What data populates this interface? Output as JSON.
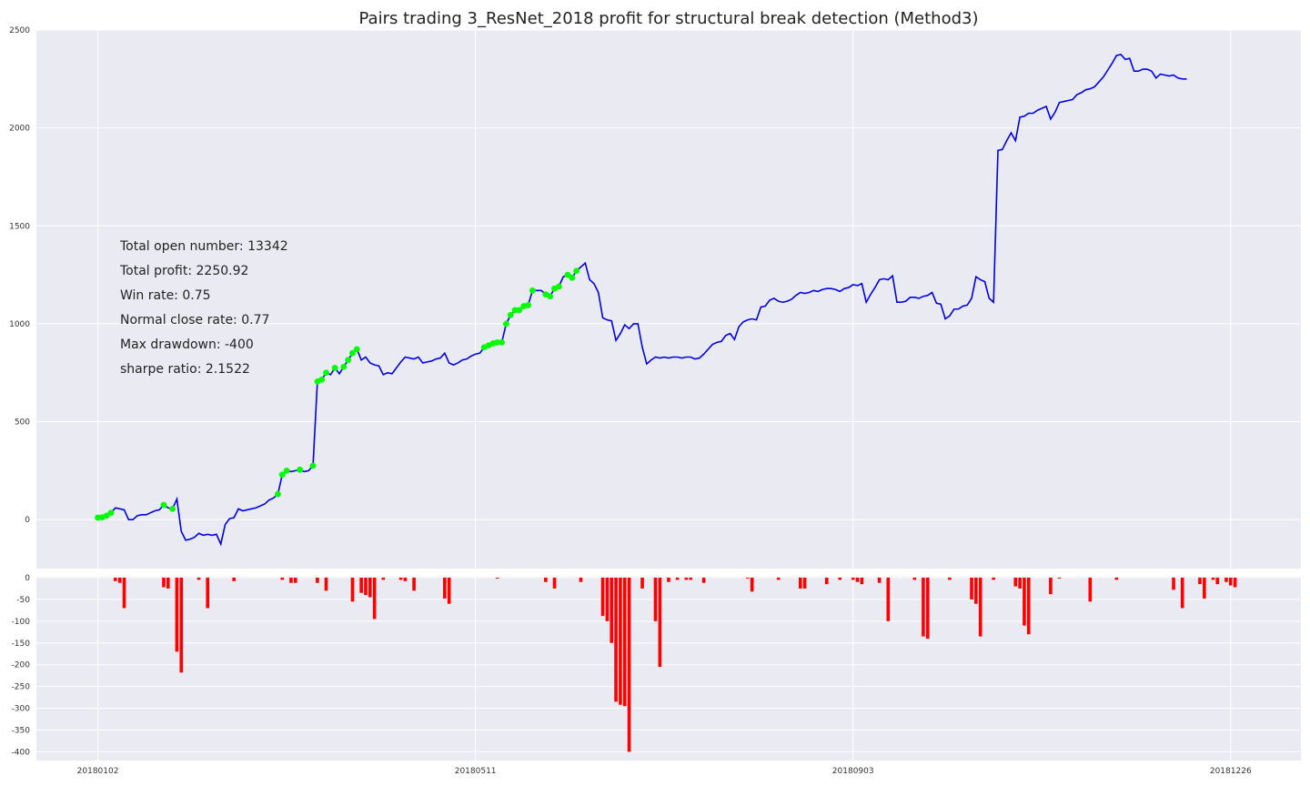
{
  "chart_data": [
    {
      "type": "line",
      "title": "Pairs trading 3_ResNet_2018 profit for structural break detection (Method3)",
      "xlabel": "",
      "ylabel": "",
      "ylim": [
        -250,
        2500
      ],
      "yticks": [
        0,
        500,
        1000,
        1500,
        2000,
        2500
      ],
      "xticks": [
        {
          "index": 0,
          "label": "20180102"
        },
        {
          "index": 86,
          "label": "20180511"
        },
        {
          "index": 172,
          "label": "20180903"
        },
        {
          "index": 258,
          "label": "20181226"
        }
      ],
      "xlim": [
        -14,
        274
      ],
      "grid": true,
      "series": [
        {
          "color": "#0000ee",
          "values": [
            10,
            12,
            20,
            35,
            60,
            55,
            50,
            0,
            0,
            20,
            25,
            25,
            35,
            45,
            50,
            75,
            60,
            55,
            105,
            -60,
            -105,
            -100,
            -90,
            -70,
            -80,
            -75,
            -80,
            -75,
            -125,
            -25,
            5,
            10,
            55,
            45,
            50,
            55,
            60,
            70,
            80,
            100,
            110,
            130,
            230,
            250,
            245,
            250,
            255,
            245,
            250,
            275,
            705,
            715,
            750,
            740,
            775,
            745,
            780,
            815,
            850,
            870,
            815,
            830,
            800,
            790,
            785,
            740,
            750,
            745,
            775,
            805,
            830,
            825,
            820,
            830,
            800,
            805,
            810,
            820,
            825,
            850,
            800,
            790,
            800,
            815,
            820,
            835,
            845,
            850,
            880,
            890,
            900,
            905,
            905,
            1000,
            1045,
            1070,
            1070,
            1090,
            1095,
            1170,
            1170,
            1170,
            1150,
            1140,
            1180,
            1190,
            1240,
            1250,
            1235,
            1270,
            1290,
            1310,
            1225,
            1205,
            1160,
            1030,
            1020,
            1015,
            915,
            950,
            995,
            975,
            1000,
            1000,
            880,
            795,
            815,
            830,
            825,
            830,
            825,
            830,
            830,
            825,
            830,
            830,
            820,
            825,
            845,
            870,
            895,
            905,
            910,
            940,
            950,
            920,
            985,
            1010,
            1020,
            1025,
            1020,
            1085,
            1090,
            1120,
            1130,
            1115,
            1110,
            1115,
            1125,
            1145,
            1160,
            1155,
            1160,
            1170,
            1165,
            1175,
            1180,
            1180,
            1175,
            1165,
            1180,
            1185,
            1200,
            1195,
            1205,
            1110,
            1150,
            1185,
            1225,
            1230,
            1225,
            1245,
            1110,
            1110,
            1115,
            1135,
            1135,
            1130,
            1140,
            1145,
            1160,
            1105,
            1100,
            1025,
            1040,
            1075,
            1075,
            1090,
            1095,
            1130,
            1240,
            1225,
            1215,
            1130,
            1110,
            1885,
            1890,
            1935,
            1975,
            1935,
            2055,
            2060,
            2075,
            2075,
            2090,
            2100,
            2110,
            2045,
            2080,
            2130,
            2135,
            2140,
            2145,
            2170,
            2180,
            2195,
            2200,
            2210,
            2235,
            2260,
            2295,
            2330,
            2370,
            2375,
            2350,
            2355,
            2290,
            2290,
            2300,
            2300,
            2290,
            2255,
            2275,
            2270,
            2265,
            2270,
            2255,
            2250,
            2250
          ]
        }
      ],
      "markers": {
        "color": "#00ff00",
        "indices": [
          0,
          1,
          2,
          3,
          15,
          17,
          41,
          42,
          43,
          46,
          49,
          50,
          51,
          52,
          54,
          56,
          57,
          58,
          59,
          88,
          89,
          90,
          91,
          92,
          93,
          94,
          95,
          96,
          97,
          98,
          99,
          102,
          103,
          104,
          105,
          107,
          108,
          109
        ]
      },
      "annotations": [
        "Total open number: 13342",
        "Total profit: 2250.92",
        "Win rate: 0.75",
        "Normal close rate: 0.77",
        "Max drawdown: -400",
        "sharpe ratio: 2.1522"
      ]
    },
    {
      "type": "bar",
      "ylim": [
        -420,
        2
      ],
      "yticks": [
        0,
        -50,
        -100,
        -150,
        -200,
        -250,
        -300,
        -350,
        -400
      ],
      "color": "#ff0000",
      "bars": [
        {
          "i": 4,
          "v": -8
        },
        {
          "i": 5,
          "v": -12
        },
        {
          "i": 6,
          "v": -70
        },
        {
          "i": 15,
          "v": -22
        },
        {
          "i": 16,
          "v": -25
        },
        {
          "i": 18,
          "v": -170
        },
        {
          "i": 19,
          "v": -218
        },
        {
          "i": 23,
          "v": -5
        },
        {
          "i": 25,
          "v": -70
        },
        {
          "i": 31,
          "v": -8
        },
        {
          "i": 42,
          "v": -5
        },
        {
          "i": 44,
          "v": -12
        },
        {
          "i": 45,
          "v": -12
        },
        {
          "i": 50,
          "v": -12
        },
        {
          "i": 52,
          "v": -30
        },
        {
          "i": 58,
          "v": -55
        },
        {
          "i": 60,
          "v": -35
        },
        {
          "i": 61,
          "v": -40
        },
        {
          "i": 62,
          "v": -45
        },
        {
          "i": 63,
          "v": -95
        },
        {
          "i": 65,
          "v": -5
        },
        {
          "i": 69,
          "v": -5
        },
        {
          "i": 70,
          "v": -8
        },
        {
          "i": 72,
          "v": -30
        },
        {
          "i": 79,
          "v": -48
        },
        {
          "i": 80,
          "v": -60
        },
        {
          "i": 91,
          "v": -2
        },
        {
          "i": 102,
          "v": -10
        },
        {
          "i": 104,
          "v": -25
        },
        {
          "i": 110,
          "v": -10
        },
        {
          "i": 115,
          "v": -88
        },
        {
          "i": 116,
          "v": -100
        },
        {
          "i": 117,
          "v": -150
        },
        {
          "i": 118,
          "v": -285
        },
        {
          "i": 119,
          "v": -292
        },
        {
          "i": 120,
          "v": -295
        },
        {
          "i": 121,
          "v": -400
        },
        {
          "i": 124,
          "v": -25
        },
        {
          "i": 127,
          "v": -100
        },
        {
          "i": 128,
          "v": -205
        },
        {
          "i": 130,
          "v": -10
        },
        {
          "i": 132,
          "v": -5
        },
        {
          "i": 134,
          "v": -5
        },
        {
          "i": 135,
          "v": -5
        },
        {
          "i": 138,
          "v": -12
        },
        {
          "i": 148,
          "v": -2
        },
        {
          "i": 149,
          "v": -32
        },
        {
          "i": 155,
          "v": -5
        },
        {
          "i": 160,
          "v": -25
        },
        {
          "i": 161,
          "v": -25
        },
        {
          "i": 166,
          "v": -15
        },
        {
          "i": 169,
          "v": -5
        },
        {
          "i": 172,
          "v": -5
        },
        {
          "i": 173,
          "v": -10
        },
        {
          "i": 174,
          "v": -15
        },
        {
          "i": 178,
          "v": -12
        },
        {
          "i": 180,
          "v": -100
        },
        {
          "i": 186,
          "v": -5
        },
        {
          "i": 188,
          "v": -135
        },
        {
          "i": 189,
          "v": -140
        },
        {
          "i": 194,
          "v": -5
        },
        {
          "i": 199,
          "v": -50
        },
        {
          "i": 200,
          "v": -60
        },
        {
          "i": 201,
          "v": -135
        },
        {
          "i": 204,
          "v": -5
        },
        {
          "i": 209,
          "v": -20
        },
        {
          "i": 210,
          "v": -25
        },
        {
          "i": 211,
          "v": -110
        },
        {
          "i": 212,
          "v": -130
        },
        {
          "i": 217,
          "v": -38
        },
        {
          "i": 219,
          "v": -2
        },
        {
          "i": 226,
          "v": -55
        },
        {
          "i": 232,
          "v": -5
        },
        {
          "i": 245,
          "v": -28
        },
        {
          "i": 247,
          "v": -70
        },
        {
          "i": 251,
          "v": -15
        },
        {
          "i": 252,
          "v": -48
        },
        {
          "i": 254,
          "v": -5
        },
        {
          "i": 255,
          "v": -15
        },
        {
          "i": 257,
          "v": -10
        },
        {
          "i": 258,
          "v": -18
        },
        {
          "i": 259,
          "v": -22
        }
      ]
    }
  ]
}
